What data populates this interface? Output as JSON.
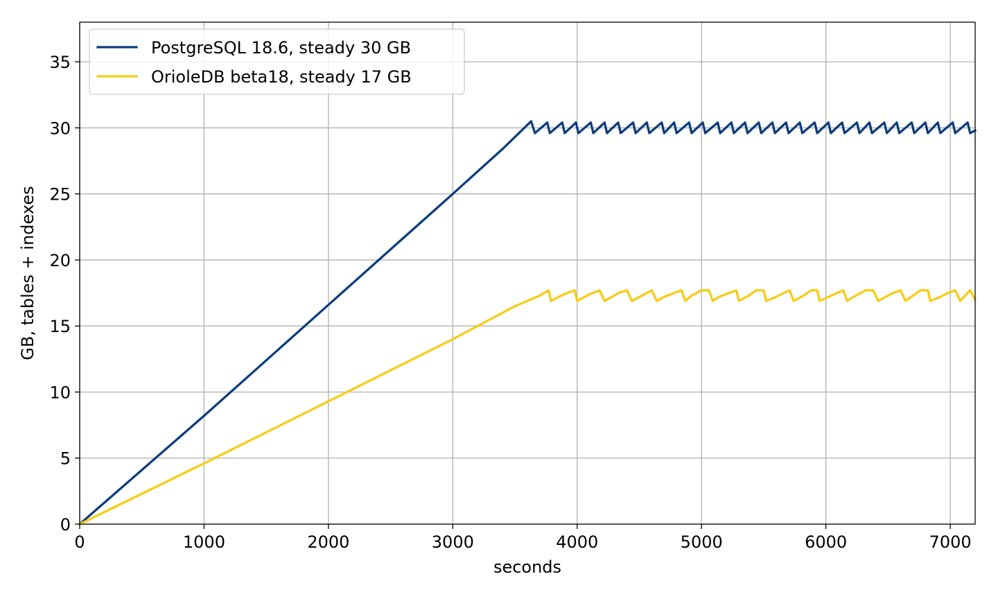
{
  "chart_data": {
    "type": "line",
    "title": "",
    "xlabel": "seconds",
    "ylabel": "GB, tables + indexes",
    "xlim": [
      0,
      7200
    ],
    "ylim": [
      0,
      38
    ],
    "xticks": [
      "0",
      "1000",
      "2000",
      "3000",
      "4000",
      "5000",
      "6000",
      "7000"
    ],
    "xtick_values": [
      0,
      1000,
      2000,
      3000,
      4000,
      5000,
      6000,
      7000
    ],
    "yticks": [
      "0",
      "5",
      "10",
      "15",
      "20",
      "25",
      "30",
      "35"
    ],
    "ytick_values": [
      0,
      5,
      10,
      15,
      20,
      25,
      30,
      35
    ],
    "grid": true,
    "legend_position": "top-left",
    "series": [
      {
        "name": "PostgreSQL 18.6, steady 30 GB",
        "color": "#0b3d7c",
        "x": [
          0,
          1000,
          2000,
          3000,
          3400,
          3630,
          3660,
          3760,
          3780,
          3880,
          3900,
          3990,
          4010,
          4110,
          4130,
          4220,
          4240,
          4330,
          4350,
          4450,
          4470,
          4560,
          4580,
          4680,
          4700,
          4780,
          4800,
          4900,
          4920,
          5010,
          5030,
          5130,
          5150,
          5240,
          5260,
          5350,
          5370,
          5460,
          5480,
          5570,
          5590,
          5680,
          5700,
          5790,
          5810,
          5910,
          5930,
          6020,
          6040,
          6130,
          6150,
          6250,
          6270,
          6350,
          6370,
          6470,
          6490,
          6570,
          6590,
          6690,
          6710,
          6800,
          6820,
          6900,
          6920,
          7020,
          7040,
          7140,
          7160,
          7200
        ],
        "y": [
          0,
          8.2,
          16.6,
          25.0,
          28.4,
          30.5,
          29.6,
          30.4,
          29.6,
          30.4,
          29.6,
          30.4,
          29.6,
          30.4,
          29.6,
          30.4,
          29.6,
          30.4,
          29.6,
          30.4,
          29.6,
          30.4,
          29.6,
          30.4,
          29.6,
          30.4,
          29.6,
          30.4,
          29.6,
          30.4,
          29.6,
          30.4,
          29.6,
          30.4,
          29.6,
          30.4,
          29.6,
          30.4,
          29.6,
          30.4,
          29.6,
          30.4,
          29.6,
          30.4,
          29.6,
          30.4,
          29.6,
          30.4,
          29.6,
          30.4,
          29.6,
          30.4,
          29.6,
          30.4,
          29.6,
          30.4,
          29.6,
          30.4,
          29.6,
          30.4,
          29.6,
          30.4,
          29.6,
          30.4,
          29.6,
          30.4,
          29.6,
          30.4,
          29.6,
          29.8
        ]
      },
      {
        "name": "OrioleDB beta18, steady 17 GB",
        "color": "#f7cc14",
        "x": [
          0,
          1000,
          2000,
          3000,
          3500,
          3700,
          3770,
          3790,
          3850,
          3920,
          3980,
          4000,
          4100,
          4180,
          4220,
          4280,
          4330,
          4400,
          4440,
          4520,
          4600,
          4640,
          4700,
          4780,
          4840,
          4870,
          4920,
          5000,
          5060,
          5090,
          5140,
          5220,
          5280,
          5300,
          5380,
          5440,
          5500,
          5520,
          5600,
          5660,
          5710,
          5740,
          5820,
          5880,
          5930,
          5950,
          6020,
          6090,
          6140,
          6170,
          6240,
          6320,
          6380,
          6420,
          6480,
          6540,
          6600,
          6640,
          6700,
          6760,
          6820,
          6840,
          6920,
          6980,
          7040,
          7080,
          7160,
          7200
        ],
        "y": [
          0,
          4.6,
          9.3,
          14.0,
          16.5,
          17.3,
          17.7,
          16.9,
          17.2,
          17.5,
          17.7,
          16.9,
          17.4,
          17.7,
          16.9,
          17.2,
          17.5,
          17.7,
          16.9,
          17.3,
          17.7,
          16.9,
          17.2,
          17.5,
          17.7,
          16.9,
          17.3,
          17.7,
          17.7,
          16.9,
          17.2,
          17.5,
          17.7,
          16.9,
          17.3,
          17.7,
          17.7,
          16.9,
          17.2,
          17.5,
          17.7,
          16.9,
          17.3,
          17.7,
          17.7,
          16.9,
          17.2,
          17.5,
          17.7,
          16.9,
          17.3,
          17.7,
          17.7,
          16.9,
          17.2,
          17.5,
          17.7,
          16.9,
          17.3,
          17.7,
          17.7,
          16.9,
          17.2,
          17.5,
          17.7,
          16.9,
          17.7,
          17.0
        ]
      }
    ]
  }
}
